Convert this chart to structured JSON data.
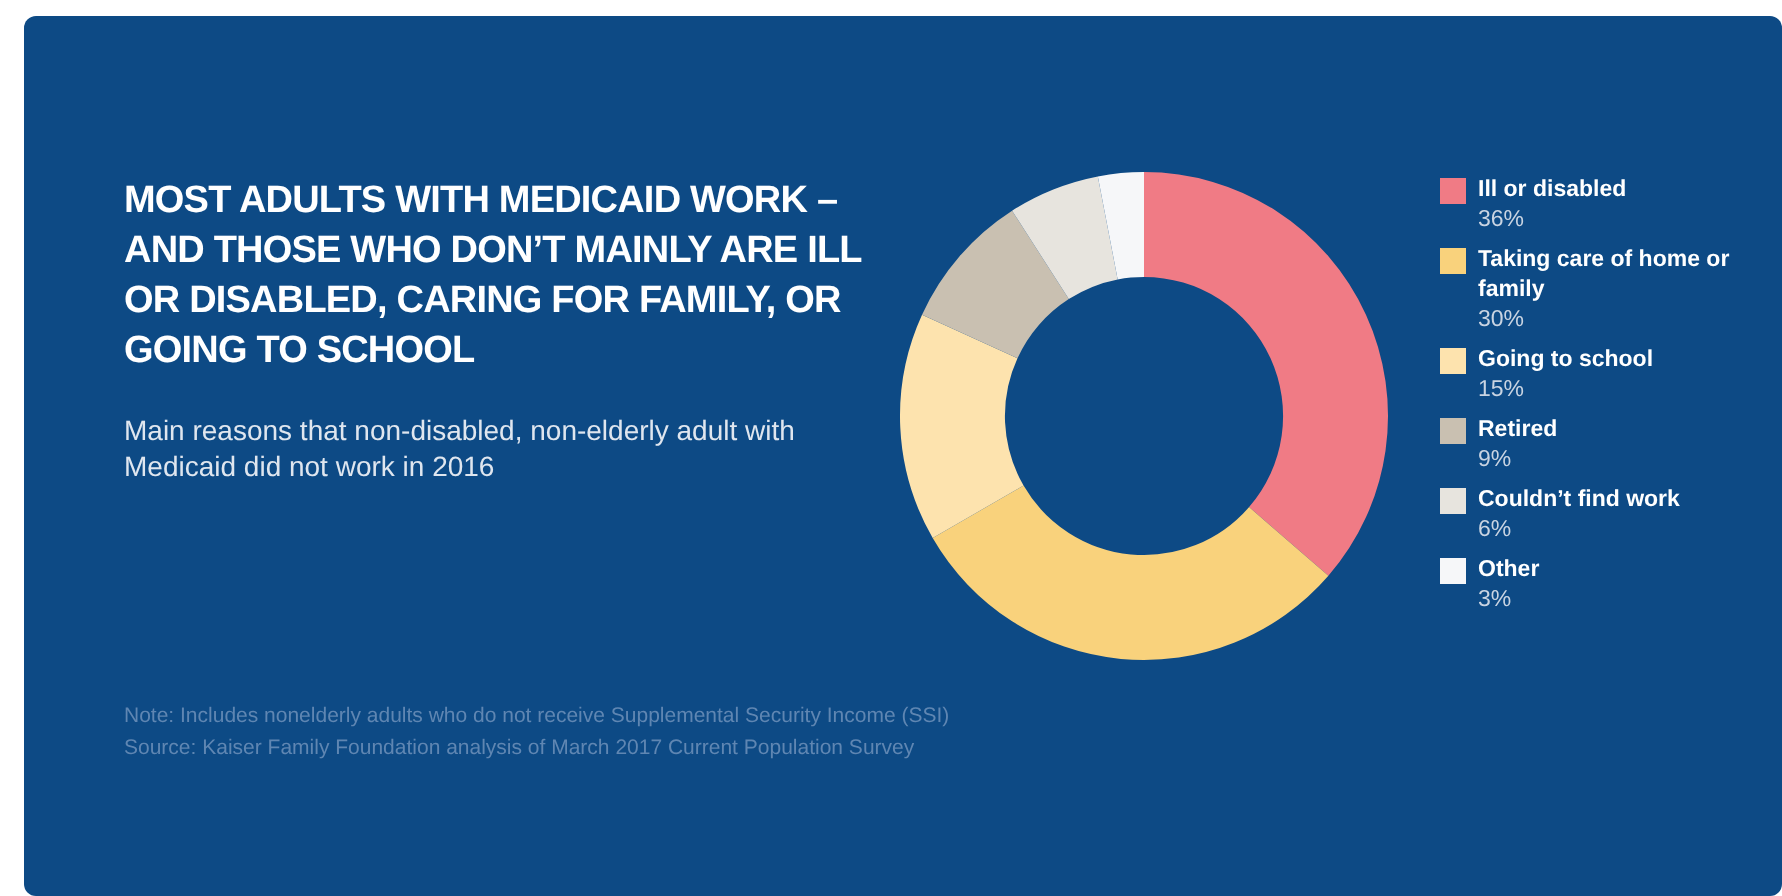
{
  "chart_data": {
    "type": "donut",
    "title": "MOST ADULTS WITH MEDICAID WORK – AND THOSE WHO DON’T MAINLY ARE ILL OR DISABLED, CARING FOR FAMILY, OR GOING TO SCHOOL",
    "subtitle": "Main reasons that non-disabled, non-elderly adult with Medicaid did not work in 2016",
    "categories": [
      "Ill or disabled",
      "Taking care of home or family",
      "Going to school",
      "Retired",
      "Couldn’t find work",
      "Other"
    ],
    "values": [
      36,
      30,
      15,
      9,
      6,
      3
    ],
    "value_labels": [
      "36%",
      "30%",
      "15%",
      "9%",
      "6%",
      "3%"
    ],
    "colors": [
      "#f07b85",
      "#f9d27c",
      "#fde3ae",
      "#c9c0b1",
      "#e7e4de",
      "#f6f7f9"
    ],
    "legend": "right",
    "annotations": [
      "Note: Includes nonelderly adults who do not receive Supplemental Security Income (SSI)",
      "Source: Kaiser Family Foundation analysis of March 2017 Current Population Survey"
    ]
  }
}
